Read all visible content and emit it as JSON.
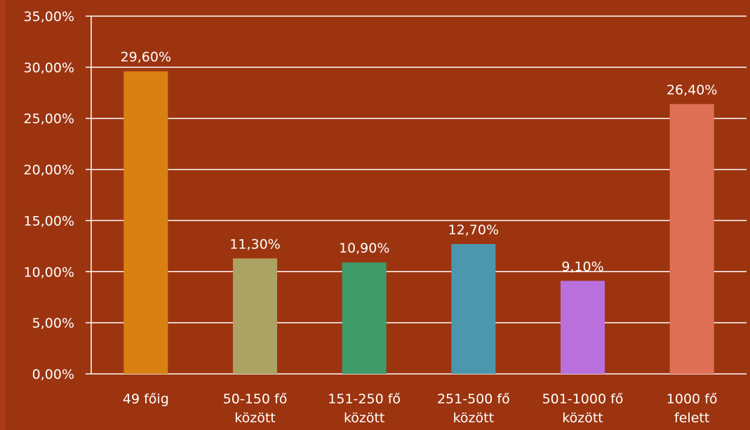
{
  "chart_data": {
    "type": "bar",
    "categories": [
      [
        "49 főig"
      ],
      [
        "50-150 fő",
        "között"
      ],
      [
        "151-250 fő",
        "között"
      ],
      [
        "251-500 fő",
        "között"
      ],
      [
        "501-1000 fő",
        "között"
      ],
      [
        "1000 fő",
        "felett"
      ]
    ],
    "values": [
      29.6,
      11.3,
      10.9,
      12.7,
      9.1,
      26.4
    ],
    "value_labels": [
      "29,60%",
      "11,30%",
      "10,90%",
      "12,70%",
      "9,10%",
      "26,40%"
    ],
    "bar_colors": [
      "#d98012",
      "#aca263",
      "#3f9b6a",
      "#4b98ae",
      "#b96fdc",
      "#e07055"
    ],
    "ylim": [
      0,
      35
    ],
    "yticks": [
      0,
      5,
      10,
      15,
      20,
      25,
      30,
      35
    ],
    "ytick_labels": [
      "0,00%",
      "5,00%",
      "10,00%",
      "15,00%",
      "20,00%",
      "25,00%",
      "30,00%",
      "35,00%"
    ],
    "grid": true,
    "title": "",
    "xlabel": "",
    "ylabel": "",
    "colors": {
      "background": "#9c3410",
      "text": "#ffffff",
      "gridline": "#ffffff"
    }
  }
}
